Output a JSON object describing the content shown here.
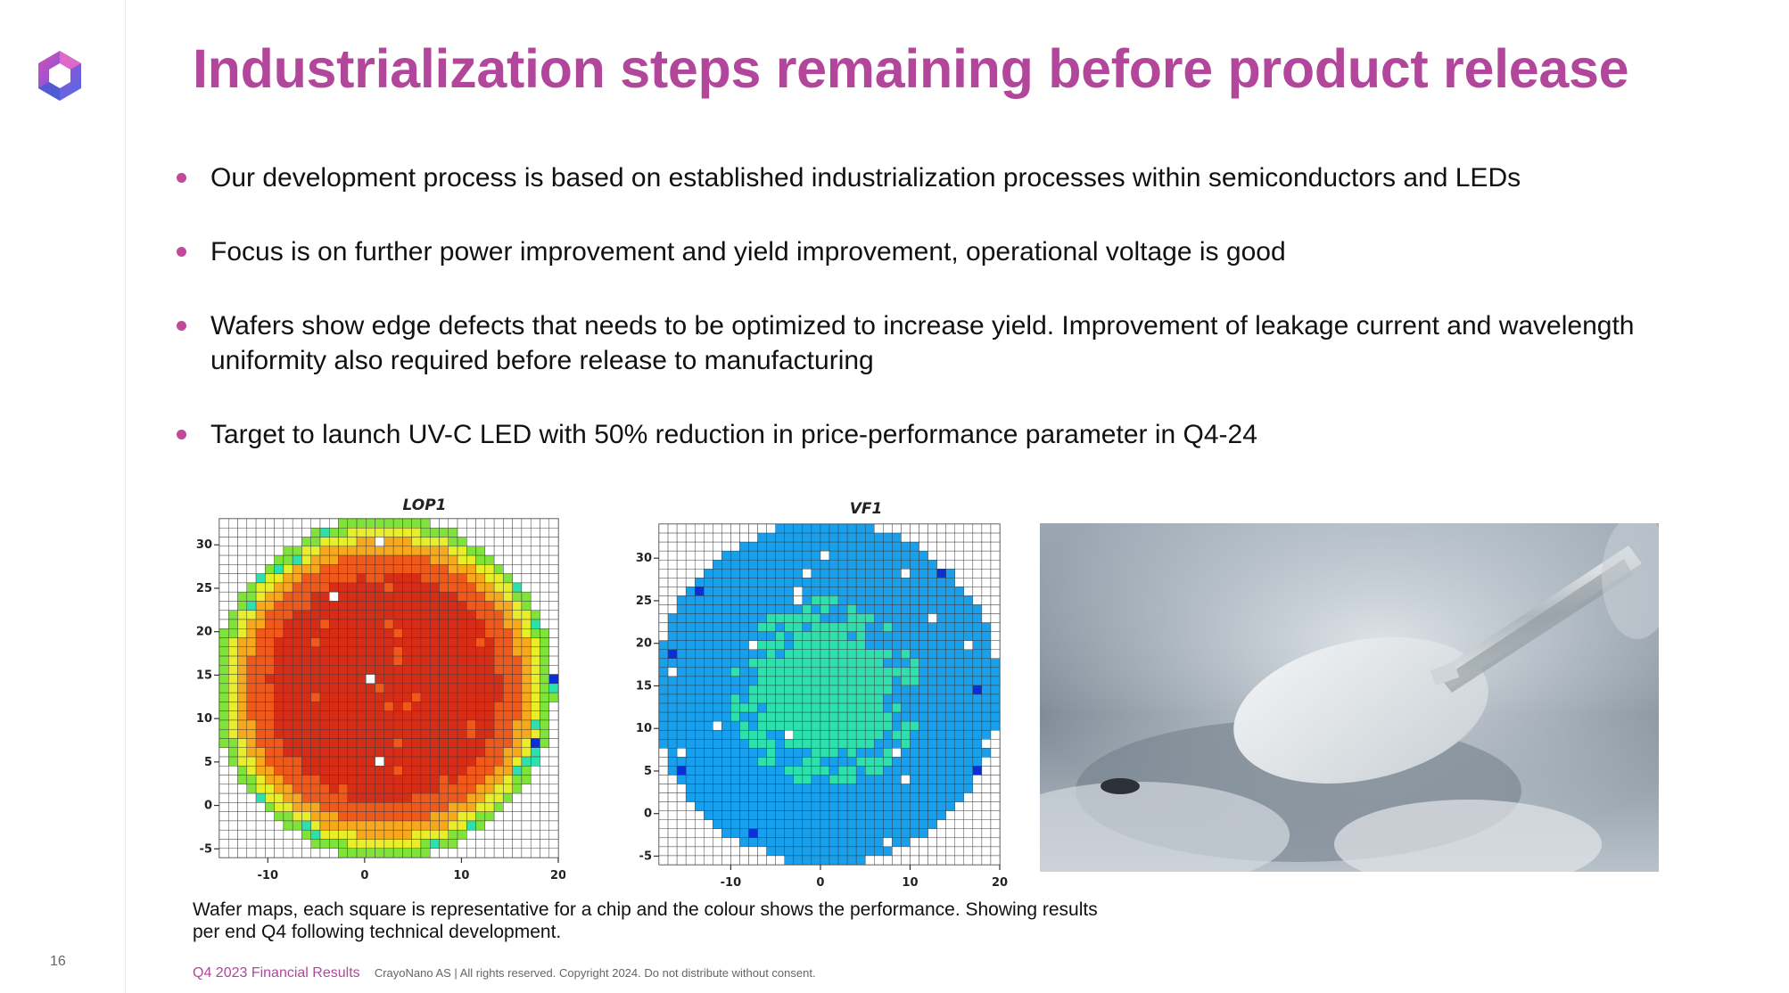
{
  "header": {
    "title": "Industrialization steps remaining before product release",
    "logo_icon": "hexagon-logo-icon"
  },
  "bullets": [
    "Our development process is based on established industrialization processes within semiconductors and LEDs",
    "Focus is on further power improvement and yield improvement, operational voltage is good",
    "Wafers show edge defects that needs to be optimized to increase yield. Improvement of leakage current and wavelength uniformity also required before release to manufacturing",
    "Target to launch UV-C LED with 50% reduction in price-performance parameter in Q4-24"
  ],
  "chart_data": [
    {
      "type": "heatmap",
      "title": "LOP1",
      "xlim": [
        -15,
        20
      ],
      "ylim": [
        -6,
        33
      ],
      "x_ticks": [
        -10,
        0,
        10,
        20
      ],
      "y_ticks": [
        30,
        25,
        20,
        15,
        10,
        5,
        0,
        -5
      ],
      "palette": [
        "#0a2fd8",
        "#19a0ec",
        "#2ee0ad",
        "#7fe339",
        "#e8ee2a",
        "#f7a81d",
        "#ef5a1c",
        "#d72d17"
      ],
      "pattern": "radial - high (red) center, lower (yellow/green) edge",
      "grid": true
    },
    {
      "type": "heatmap",
      "title": "VF1",
      "xlim": [
        -18,
        20
      ],
      "ylim": [
        -6,
        34
      ],
      "x_ticks": [
        -10,
        0,
        10,
        20
      ],
      "y_ticks": [
        30,
        25,
        20,
        15,
        10,
        5,
        0,
        -5
      ],
      "palette": [
        "#0a2fd8",
        "#19a0ec",
        "#2ee0ad",
        "#7fe339",
        "#e8ee2a",
        "#f7a81d",
        "#ef5a1c",
        "#d72d17"
      ],
      "pattern": "mostly uniform cyan with greener center",
      "grid": true
    }
  ],
  "photo": {
    "icon": "wafer-tweezers-photo"
  },
  "caption": "Wafer maps, each square is representative for a chip and the colour shows the performance. Showing results per end Q4 following technical development.",
  "footer": {
    "left": "Q4 2023 Financial Results",
    "right": "CrayoNano AS | All rights reserved. Copyright 2024. Do not distribute without consent."
  },
  "page_number": "16"
}
